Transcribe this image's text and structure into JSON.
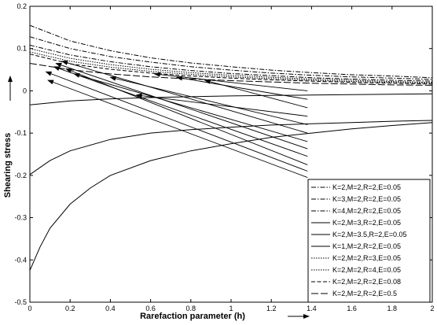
{
  "chart_data": {
    "type": "line",
    "title": "",
    "xlabel": "Rarefaction parameter (h)",
    "ylabel": "Shearing stress",
    "xlim": [
      0,
      2
    ],
    "ylim": [
      -0.5,
      0.2
    ],
    "xticks": [
      "0",
      "0.2",
      "0.4",
      "0.6",
      "0.8",
      "1",
      "1.2",
      "1.4",
      "1.6",
      "1.8",
      "2"
    ],
    "yticks": [
      "0.2",
      "0.1",
      "0",
      "-0.1",
      "-0.2",
      "-0.3",
      "-0.4",
      "-0.5"
    ],
    "grid": false,
    "legend_position": "bottom-right",
    "series": [
      {
        "name": "K=2,M=2,R=2,E=0.05",
        "dash": "dashdot",
        "x": [
          0,
          0.2,
          0.4,
          0.6,
          0.8,
          1.0,
          1.2,
          1.4,
          1.6,
          1.8,
          2.0
        ],
        "y": [
          0.108,
          0.085,
          0.069,
          0.057,
          0.048,
          0.041,
          0.036,
          0.031,
          0.028,
          0.025,
          0.023
        ]
      },
      {
        "name": "K=3,M=2,R=2,E=0.05",
        "dash": "dashdot",
        "x": [
          0,
          0.2,
          0.4,
          0.6,
          0.8,
          1.0,
          1.2,
          1.4,
          1.6,
          1.8,
          2.0
        ],
        "y": [
          0.128,
          0.1,
          0.081,
          0.068,
          0.057,
          0.049,
          0.042,
          0.037,
          0.033,
          0.03,
          0.027
        ]
      },
      {
        "name": "K=4,M=2,R=2,E=0.05",
        "dash": "dashdot",
        "x": [
          0,
          0.2,
          0.4,
          0.6,
          0.8,
          1.0,
          1.2,
          1.4,
          1.6,
          1.8,
          2.0
        ],
        "y": [
          0.155,
          0.118,
          0.095,
          0.078,
          0.066,
          0.057,
          0.049,
          0.043,
          0.038,
          0.035,
          0.031
        ]
      },
      {
        "name": "K=2,M=3,R=2,E=0.05",
        "dash": "solid",
        "x": [
          0,
          0.2,
          0.4,
          0.6,
          0.8,
          1.0,
          1.2,
          1.4,
          1.6,
          1.8,
          2.0
        ],
        "y": [
          -0.033,
          -0.024,
          -0.019,
          -0.016,
          -0.014,
          -0.012,
          -0.011,
          -0.01,
          -0.009,
          -0.008,
          -0.007
        ]
      },
      {
        "name": "K=2,M=3.5,R=2,E=0.05",
        "dash": "solid",
        "x": [
          0,
          0.1,
          0.2,
          0.4,
          0.6,
          0.8,
          1.0,
          1.2,
          1.4,
          1.6,
          1.8,
          2.0
        ],
        "y": [
          -0.198,
          -0.165,
          -0.142,
          -0.115,
          -0.1,
          -0.092,
          -0.086,
          -0.081,
          -0.078,
          -0.075,
          -0.072,
          -0.07
        ]
      },
      {
        "name": "K=1,M=2,R=2,E=0.05",
        "dash": "solid",
        "x": [
          0,
          0.05,
          0.1,
          0.2,
          0.3,
          0.4,
          0.6,
          0.8,
          1.0,
          1.2,
          1.4,
          1.6,
          1.8,
          2.0
        ],
        "y": [
          -0.425,
          -0.37,
          -0.325,
          -0.268,
          -0.23,
          -0.2,
          -0.165,
          -0.142,
          -0.125,
          -0.11,
          -0.1,
          -0.09,
          -0.082,
          -0.075
        ]
      },
      {
        "name": "K=2,M=2,R=3,E=0.05",
        "dash": "dotted",
        "x": [
          0,
          0.2,
          0.4,
          0.6,
          0.8,
          1.0,
          1.2,
          1.4,
          1.6,
          1.8,
          2.0
        ],
        "y": [
          0.1,
          0.077,
          0.062,
          0.051,
          0.043,
          0.037,
          0.032,
          0.028,
          0.025,
          0.022,
          0.02
        ]
      },
      {
        "name": "K=2,M=2,R=4,E=0.05",
        "dash": "dotted",
        "x": [
          0,
          0.2,
          0.4,
          0.6,
          0.8,
          1.0,
          1.2,
          1.4,
          1.6,
          1.8,
          2.0
        ],
        "y": [
          0.092,
          0.07,
          0.056,
          0.046,
          0.039,
          0.033,
          0.029,
          0.025,
          0.022,
          0.02,
          0.018
        ]
      },
      {
        "name": "K=2,M=2,R=2,E=0.08",
        "dash": "dashed",
        "x": [
          0,
          0.2,
          0.4,
          0.6,
          0.8,
          1.0,
          1.2,
          1.4,
          1.6,
          1.8,
          2.0
        ],
        "y": [
          0.087,
          0.064,
          0.051,
          0.042,
          0.035,
          0.03,
          0.026,
          0.023,
          0.02,
          0.018,
          0.016
        ]
      },
      {
        "name": "K=2,M=2,R=2,E=0.5",
        "dash": "longdash",
        "x": [
          0,
          0.2,
          0.4,
          0.6,
          0.8,
          1.0,
          1.2,
          1.4,
          1.6,
          1.8,
          2.0
        ],
        "y": [
          0.065,
          0.05,
          0.04,
          0.033,
          0.028,
          0.024,
          0.021,
          0.018,
          0.016,
          0.014,
          0.013
        ]
      }
    ],
    "annotations": [
      {
        "text_x": 1.38,
        "text_y": -0.175,
        "x": 0.18,
        "y": 0.052
      },
      {
        "text_x": 1.38,
        "text_y": -0.155,
        "x": 0.12,
        "y": 0.057
      },
      {
        "text_x": 1.38,
        "text_y": -0.137,
        "x": 0.13,
        "y": 0.065
      },
      {
        "text_x": 1.38,
        "text_y": -0.12,
        "x": 0.22,
        "y": 0.04
      },
      {
        "text_x": 1.38,
        "text_y": -0.1,
        "x": 0.16,
        "y": 0.07
      },
      {
        "text_x": 1.38,
        "text_y": -0.08,
        "x": 0.4,
        "y": 0.032
      },
      {
        "text_x": 1.38,
        "text_y": -0.06,
        "x": 0.53,
        "y": -0.01
      },
      {
        "text_x": 1.38,
        "text_y": -0.04,
        "x": 0.87,
        "y": 0.025
      },
      {
        "text_x": 1.38,
        "text_y": -0.02,
        "x": 0.73,
        "y": 0.032
      },
      {
        "text_x": 1.38,
        "text_y": 0.0,
        "x": 0.62,
        "y": 0.04
      },
      {
        "text_x": 1.38,
        "text_y": -0.19,
        "x": 0.08,
        "y": 0.045
      },
      {
        "text_x": 1.38,
        "text_y": -0.205,
        "x": 0.09,
        "y": 0.025
      }
    ],
    "side_arrows": [
      {
        "direction": "up",
        "near": "ylabel"
      },
      {
        "direction": "right",
        "near": "xlabel"
      }
    ]
  }
}
